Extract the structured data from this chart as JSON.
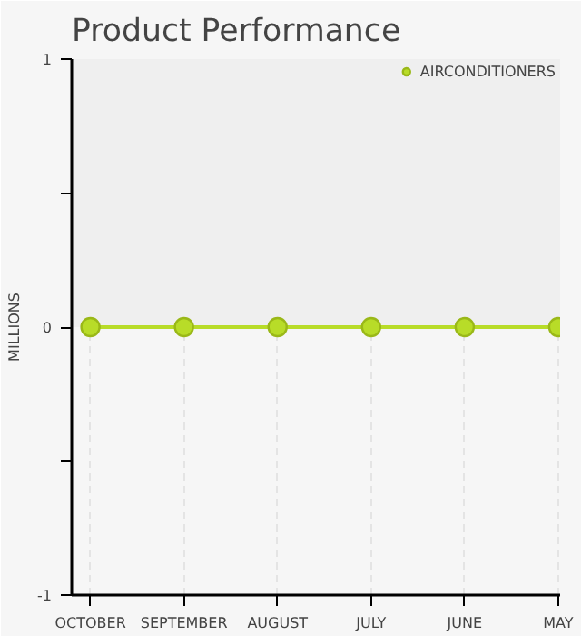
{
  "chart_data": {
    "type": "line",
    "title": "Product Performance",
    "ylabel": "MILLIONS",
    "categories": [
      "OCTOBER",
      "SEPTEMBER",
      "AUGUST",
      "JULY",
      "JUNE",
      "MAY"
    ],
    "series": [
      {
        "name": "AIRCONDITIONERS",
        "color": "#b8dc28",
        "values": [
          0,
          0,
          0,
          0,
          0,
          0
        ]
      }
    ],
    "ylim": [
      -1,
      1
    ],
    "yticks": [
      -1,
      {
        "value": -0.5,
        "label": null
      },
      0,
      {
        "value": 0.5,
        "label": null
      },
      1
    ],
    "bands": [
      {
        "axis": "y",
        "from": 0,
        "to": 1,
        "color": "#efefef"
      }
    ],
    "grid": "x",
    "legend": "top right",
    "marker": "circle",
    "line_style": "solid"
  }
}
